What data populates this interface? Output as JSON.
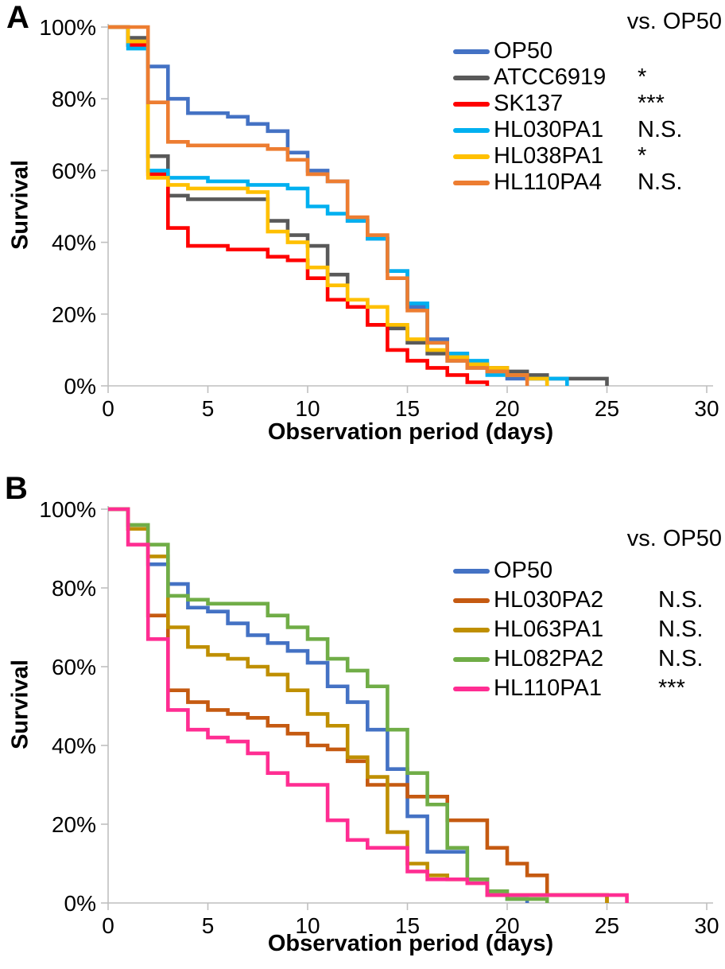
{
  "figure_type": "kaplan-meier survival curves, two panels",
  "chart_data": [
    {
      "type": "line",
      "step": true,
      "panel_letter": "A",
      "xlabel": "Observation period (days)",
      "ylabel": "Survival",
      "legend_header": "vs. OP50",
      "xlim": [
        0,
        30
      ],
      "ylim": [
        0,
        100
      ],
      "grid": false,
      "legend_position": "upper right, inside",
      "xticks": [
        0,
        5,
        10,
        15,
        20,
        25,
        30
      ],
      "ytick_values": [
        100,
        80,
        60,
        40,
        20,
        0
      ],
      "ytick_labels": [
        "100%",
        "80%",
        "60%",
        "40%",
        "20%",
        "0%"
      ],
      "x_unit": "days",
      "y_unit": "percent surviving",
      "series": [
        {
          "name": "OP50",
          "significance": "",
          "color": "#4472C4",
          "values_by_day": [
            100,
            95,
            89,
            80,
            76,
            76,
            75,
            73,
            71,
            65,
            60,
            57,
            46,
            41,
            32,
            22,
            13,
            9,
            5,
            4,
            2,
            2,
            0
          ]
        },
        {
          "name": "ATCC6919",
          "significance": "*",
          "color": "#595959",
          "values_by_day": [
            100,
            97,
            64,
            53,
            52,
            52,
            52,
            52,
            46,
            42,
            39,
            31,
            24,
            17,
            16,
            12,
            9,
            7,
            6,
            5,
            4,
            3,
            2,
            2,
            2,
            0
          ]
        },
        {
          "name": "SK137",
          "significance": "***",
          "color": "#FF0000",
          "values_by_day": [
            100,
            95,
            59,
            44,
            39,
            39,
            38,
            38,
            36,
            35,
            30,
            24,
            22,
            17,
            10,
            7,
            5,
            3,
            1,
            0
          ]
        },
        {
          "name": "HL030PA1",
          "significance": "N.S.",
          "color": "#00B0F0",
          "values_by_day": [
            100,
            94,
            60,
            58,
            58,
            57,
            57,
            56,
            56,
            55,
            50,
            48,
            46,
            41,
            32,
            23,
            12,
            9,
            7,
            3,
            3,
            2,
            2,
            0
          ]
        },
        {
          "name": "HL038PA1",
          "significance": "*",
          "color": "#FFC000",
          "values_by_day": [
            100,
            96,
            58,
            56,
            55,
            55,
            55,
            54,
            43,
            40,
            33,
            28,
            24,
            22,
            17,
            13,
            10,
            8,
            6,
            5,
            3,
            2,
            0
          ]
        },
        {
          "name": "HL110PA4",
          "significance": "N.S.",
          "color": "#ED7D31",
          "values_by_day": [
            100,
            100,
            79,
            68,
            67,
            67,
            67,
            67,
            66,
            63,
            59,
            57,
            47,
            42,
            30,
            21,
            12,
            7,
            5,
            4,
            3,
            0
          ]
        }
      ]
    },
    {
      "type": "line",
      "step": true,
      "panel_letter": "B",
      "xlabel": "Observation period (days)",
      "ylabel": "Survival",
      "legend_header": "vs. OP50",
      "xlim": [
        0,
        30
      ],
      "ylim": [
        0,
        100
      ],
      "grid": false,
      "legend_position": "upper right, inside",
      "xticks": [
        0,
        5,
        10,
        15,
        20,
        25,
        30
      ],
      "ytick_values": [
        100,
        80,
        60,
        40,
        20,
        0
      ],
      "ytick_labels": [
        "100%",
        "80%",
        "60%",
        "40%",
        "20%",
        "0%"
      ],
      "x_unit": "days",
      "y_unit": "percent surviving",
      "series": [
        {
          "name": "OP50",
          "significance": "",
          "color": "#4472C4",
          "values_by_day": [
            100,
            96,
            86,
            81,
            75,
            74,
            71,
            68,
            66,
            64,
            61,
            55,
            51,
            44,
            34,
            22,
            13,
            13,
            6,
            2,
            1,
            0
          ]
        },
        {
          "name": "HL030PA2",
          "significance": "N.S.",
          "color": "#C55A11",
          "values_by_day": [
            100,
            95,
            73,
            54,
            51,
            49,
            48,
            47,
            45,
            43,
            40,
            39,
            36,
            30,
            30,
            27,
            27,
            21,
            21,
            14,
            10,
            7,
            2,
            2,
            2,
            0
          ]
        },
        {
          "name": "HL063PA1",
          "significance": "N.S.",
          "color": "#BF8F00",
          "values_by_day": [
            100,
            95,
            88,
            70,
            65,
            63,
            62,
            60,
            58,
            54,
            48,
            45,
            37,
            32,
            18,
            10,
            7,
            6,
            6,
            2,
            2,
            2,
            2,
            2,
            2,
            0
          ]
        },
        {
          "name": "HL082PA2",
          "significance": "N.S.",
          "color": "#70AD47",
          "values_by_day": [
            100,
            96,
            91,
            78,
            77,
            76,
            76,
            76,
            73,
            70,
            67,
            62,
            59,
            55,
            44,
            33,
            25,
            14,
            6,
            3,
            1,
            1,
            0
          ]
        },
        {
          "name": "HL110PA1",
          "significance": "***",
          "color": "#FF2D92",
          "values_by_day": [
            100,
            91,
            67,
            49,
            44,
            42,
            41,
            38,
            33,
            30,
            30,
            21,
            16,
            14,
            14,
            8,
            6,
            6,
            5,
            2,
            2,
            2,
            2,
            2,
            2,
            2,
            0
          ]
        }
      ]
    }
  ]
}
